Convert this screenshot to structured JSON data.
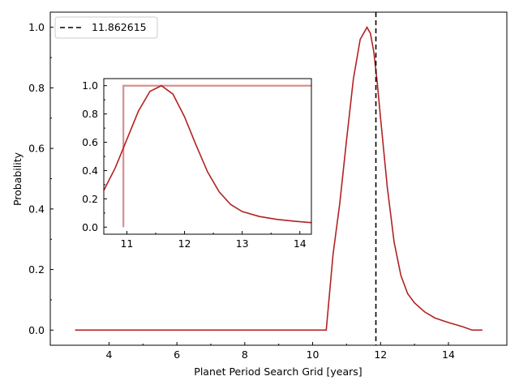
{
  "chart_data": [
    {
      "type": "line",
      "xlabel": "Planet Period Search Grid [years]",
      "ylabel": "Probability",
      "xlim": [
        2.27,
        15.72
      ],
      "ylim": [
        -0.05,
        1.05
      ],
      "xticks": [
        4,
        6,
        8,
        10,
        12,
        14
      ],
      "yticks": [
        0.0,
        0.2,
        0.4,
        0.6,
        0.8,
        1.0
      ],
      "xtick_labels": [
        "4",
        "6",
        "8",
        "10",
        "12",
        "14"
      ],
      "ytick_labels": [
        "0.0",
        "0.2",
        "0.4",
        "0.6",
        "0.8",
        "1.0"
      ],
      "grid": false,
      "legend_position": "top-left",
      "series": [
        {
          "color": "#b22222",
          "x": [
            3.0,
            10.4,
            10.6,
            10.8,
            11.0,
            11.2,
            11.4,
            11.6,
            11.7,
            11.8,
            11.9,
            12.0,
            12.2,
            12.4,
            12.6,
            12.8,
            13.0,
            13.3,
            13.6,
            14.0,
            14.4,
            14.7,
            15.0
          ],
          "y": [
            0.0,
            0.0,
            0.25,
            0.42,
            0.63,
            0.83,
            0.96,
            1.0,
            0.98,
            0.92,
            0.82,
            0.7,
            0.47,
            0.29,
            0.18,
            0.12,
            0.09,
            0.06,
            0.04,
            0.025,
            0.012,
            0.0,
            0.0
          ]
        }
      ],
      "annotations": [
        {
          "kind": "vertical_dashed_line",
          "x": 11.862615,
          "color": "#000000",
          "legend_label": "11.862615"
        }
      ]
    },
    {
      "type": "line",
      "placement": "inset",
      "xlim": [
        10.6,
        14.2
      ],
      "ylim": [
        -0.05,
        1.05
      ],
      "xticks": [
        11,
        12,
        13,
        14
      ],
      "yticks": [
        0.0,
        0.2,
        0.4,
        0.6,
        0.8,
        1.0
      ],
      "xtick_labels": [
        "11",
        "12",
        "13",
        "14"
      ],
      "ytick_labels": [
        "0.0",
        "0.2",
        "0.4",
        "0.6",
        "0.8",
        "1.0"
      ],
      "series": [
        {
          "color": "#b22222",
          "x": [
            10.6,
            10.8,
            11.0,
            11.2,
            11.4,
            11.6,
            11.8,
            12.0,
            12.2,
            12.4,
            12.6,
            12.8,
            13.0,
            13.3,
            13.6,
            13.9,
            14.2
          ],
          "y": [
            0.26,
            0.42,
            0.62,
            0.82,
            0.96,
            1.0,
            0.94,
            0.78,
            0.58,
            0.39,
            0.25,
            0.16,
            0.11,
            0.075,
            0.055,
            0.042,
            0.032
          ]
        },
        {
          "color": "#d88f8f",
          "x": [
            10.94,
            10.94,
            14.2
          ],
          "y": [
            0.0,
            1.0,
            1.0
          ]
        }
      ]
    }
  ]
}
